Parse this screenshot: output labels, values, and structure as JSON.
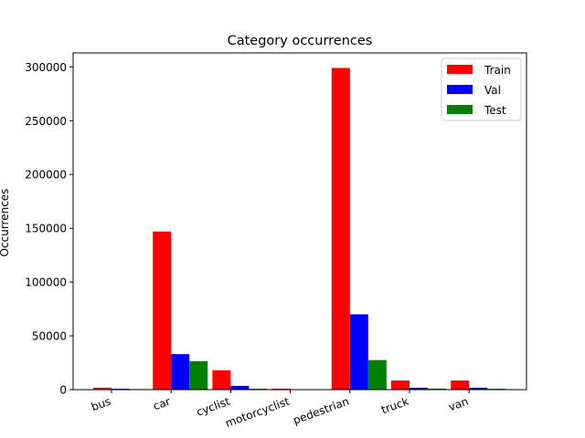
{
  "chart_data": {
    "type": "bar",
    "title": "Category occurrences",
    "xlabel": "",
    "ylabel": "Occurrences",
    "categories": [
      "bus",
      "car",
      "cyclist",
      "motorcyclist",
      "pedestrian",
      "truck",
      "van"
    ],
    "series": [
      {
        "name": "Train",
        "color": "#ff0000",
        "values": [
          1800,
          147000,
          18000,
          900,
          299000,
          8500,
          8500
        ]
      },
      {
        "name": "Val",
        "color": "#0000ff",
        "values": [
          800,
          33000,
          3500,
          300,
          70000,
          1800,
          1800
        ]
      },
      {
        "name": "Test",
        "color": "#008000",
        "values": [
          500,
          26500,
          900,
          200,
          27500,
          1000,
          800
        ]
      }
    ],
    "ylim": [
      0,
      313000
    ],
    "yticks": [
      0,
      50000,
      100000,
      150000,
      200000,
      250000,
      300000
    ],
    "ytick_labels": [
      "0",
      "50000",
      "100000",
      "150000",
      "200000",
      "250000",
      "300000"
    ],
    "grid": false,
    "legend_position": "top-right"
  }
}
